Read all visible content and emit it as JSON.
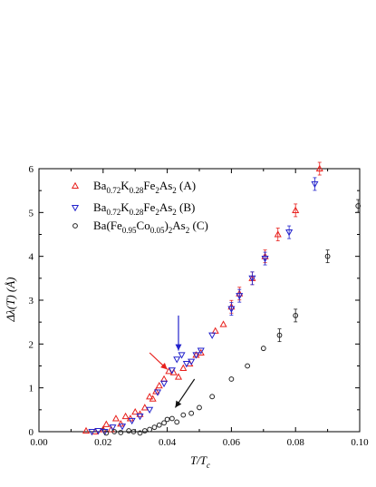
{
  "chart_data": {
    "type": "scatter",
    "xlabel": "T/Tc",
    "ylabel": "Δλ(T) (Å)",
    "xlim": [
      0.0,
      0.1
    ],
    "ylim": [
      0,
      6
    ],
    "x_ticks": [
      "0.00",
      "0.02",
      "0.04",
      "0.06",
      "0.08",
      "0.10"
    ],
    "y_ticks": [
      "0",
      "1",
      "2",
      "3",
      "4",
      "5",
      "6"
    ],
    "x_tick_values": [
      0.0,
      0.02,
      0.04,
      0.06,
      0.08,
      0.1
    ],
    "y_tick_values": [
      0,
      1,
      2,
      3,
      4,
      5,
      6
    ],
    "grid": false,
    "legend_position": "top-left",
    "series": [
      {
        "name": "Ba0.72K0.28Fe2As2 (A)",
        "color": "#e8201c",
        "marker": "triangle-up",
        "points": [
          {
            "x": 0.0147,
            "y": 0.02
          },
          {
            "x": 0.0175,
            "y": 0.0
          },
          {
            "x": 0.02,
            "y": 0.05
          },
          {
            "x": 0.021,
            "y": 0.17
          },
          {
            "x": 0.0225,
            "y": 0.05
          },
          {
            "x": 0.024,
            "y": 0.3
          },
          {
            "x": 0.0255,
            "y": 0.18
          },
          {
            "x": 0.027,
            "y": 0.35
          },
          {
            "x": 0.0285,
            "y": 0.3
          },
          {
            "x": 0.03,
            "y": 0.45
          },
          {
            "x": 0.0315,
            "y": 0.4
          },
          {
            "x": 0.033,
            "y": 0.55
          },
          {
            "x": 0.0345,
            "y": 0.8
          },
          {
            "x": 0.0355,
            "y": 0.75
          },
          {
            "x": 0.0365,
            "y": 0.92
          },
          {
            "x": 0.0375,
            "y": 1.05
          },
          {
            "x": 0.039,
            "y": 1.2
          },
          {
            "x": 0.0405,
            "y": 1.38
          },
          {
            "x": 0.042,
            "y": 1.35
          },
          {
            "x": 0.0435,
            "y": 1.25
          },
          {
            "x": 0.045,
            "y": 1.45
          },
          {
            "x": 0.047,
            "y": 1.55
          },
          {
            "x": 0.049,
            "y": 1.75
          },
          {
            "x": 0.0505,
            "y": 1.8
          },
          {
            "x": 0.055,
            "y": 2.3
          },
          {
            "x": 0.0575,
            "y": 2.45
          },
          {
            "x": 0.06,
            "y": 2.85
          },
          {
            "x": 0.0625,
            "y": 3.15
          },
          {
            "x": 0.0665,
            "y": 3.5
          },
          {
            "x": 0.0705,
            "y": 4.0
          },
          {
            "x": 0.0745,
            "y": 4.5
          },
          {
            "x": 0.08,
            "y": 5.05
          },
          {
            "x": 0.0875,
            "y": 6.0
          }
        ]
      },
      {
        "name": "Ba0.72K0.28Fe2As2 (B)",
        "color": "#2222cc",
        "marker": "triangle-down",
        "points": [
          {
            "x": 0.0165,
            "y": 0.0
          },
          {
            "x": 0.0185,
            "y": 0.02
          },
          {
            "x": 0.0205,
            "y": 0.0
          },
          {
            "x": 0.023,
            "y": 0.1
          },
          {
            "x": 0.026,
            "y": 0.12
          },
          {
            "x": 0.029,
            "y": 0.25
          },
          {
            "x": 0.0315,
            "y": 0.35
          },
          {
            "x": 0.0345,
            "y": 0.5
          },
          {
            "x": 0.037,
            "y": 0.9
          },
          {
            "x": 0.039,
            "y": 1.1
          },
          {
            "x": 0.0415,
            "y": 1.4
          },
          {
            "x": 0.043,
            "y": 1.65
          },
          {
            "x": 0.0445,
            "y": 1.75
          },
          {
            "x": 0.046,
            "y": 1.55
          },
          {
            "x": 0.0475,
            "y": 1.6
          },
          {
            "x": 0.049,
            "y": 1.75
          },
          {
            "x": 0.0505,
            "y": 1.85
          },
          {
            "x": 0.054,
            "y": 2.2
          },
          {
            "x": 0.06,
            "y": 2.8
          },
          {
            "x": 0.0625,
            "y": 3.1
          },
          {
            "x": 0.0665,
            "y": 3.5
          },
          {
            "x": 0.0705,
            "y": 3.95
          },
          {
            "x": 0.078,
            "y": 4.55
          },
          {
            "x": 0.086,
            "y": 5.65
          }
        ]
      },
      {
        "name": "Ba(Fe0.95Co0.05)2As2 (C)",
        "color": "#222222",
        "marker": "circle",
        "points": [
          {
            "x": 0.021,
            "y": -0.03
          },
          {
            "x": 0.0235,
            "y": 0.0
          },
          {
            "x": 0.0255,
            "y": -0.02
          },
          {
            "x": 0.028,
            "y": 0.02
          },
          {
            "x": 0.0295,
            "y": 0.0
          },
          {
            "x": 0.0315,
            "y": -0.03
          },
          {
            "x": 0.033,
            "y": 0.02
          },
          {
            "x": 0.0345,
            "y": 0.05
          },
          {
            "x": 0.036,
            "y": 0.1
          },
          {
            "x": 0.0375,
            "y": 0.15
          },
          {
            "x": 0.039,
            "y": 0.2
          },
          {
            "x": 0.04,
            "y": 0.28
          },
          {
            "x": 0.0415,
            "y": 0.3
          },
          {
            "x": 0.043,
            "y": 0.22
          },
          {
            "x": 0.045,
            "y": 0.38
          },
          {
            "x": 0.0475,
            "y": 0.42
          },
          {
            "x": 0.05,
            "y": 0.55
          },
          {
            "x": 0.054,
            "y": 0.8
          },
          {
            "x": 0.06,
            "y": 1.2
          },
          {
            "x": 0.065,
            "y": 1.5
          },
          {
            "x": 0.07,
            "y": 1.9
          },
          {
            "x": 0.075,
            "y": 2.2
          },
          {
            "x": 0.08,
            "y": 2.65
          },
          {
            "x": 0.09,
            "y": 4.0
          },
          {
            "x": 0.0995,
            "y": 5.15
          }
        ]
      }
    ],
    "annotations": [
      {
        "type": "arrow",
        "color": "#e8201c",
        "from": {
          "x": 0.0345,
          "y": 1.8
        },
        "to": {
          "x": 0.04,
          "y": 1.42
        }
      },
      {
        "type": "arrow",
        "color": "#2222cc",
        "from": {
          "x": 0.0435,
          "y": 2.65
        },
        "to": {
          "x": 0.0435,
          "y": 1.85
        }
      },
      {
        "type": "arrow",
        "color": "#111111",
        "from": {
          "x": 0.0485,
          "y": 1.2
        },
        "to": {
          "x": 0.0425,
          "y": 0.55
        }
      }
    ]
  }
}
